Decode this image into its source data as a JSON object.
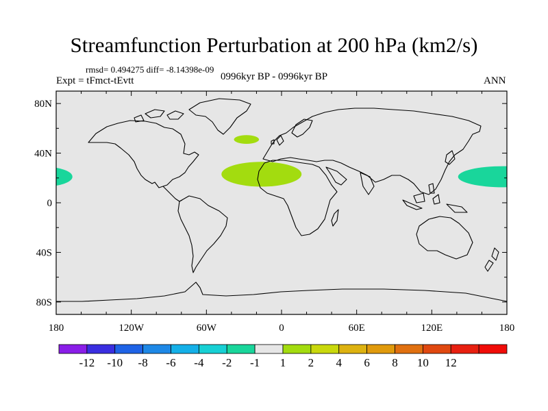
{
  "chart_data": {
    "type": "map",
    "title": "Streamfunction Perturbation at 200 hPa (km2/s)",
    "stats": "rmsd= 0.494275 diff= -8.14398e-09",
    "experiment": "Expt = tFmct-tEvtt",
    "period": "0996kyr BP - 0996kyr BP",
    "season": "ANN",
    "lon_range": [
      -180,
      180
    ],
    "lat_range": [
      -90,
      90
    ],
    "lon_ticks": [
      {
        "value": -180,
        "label": "180"
      },
      {
        "value": -120,
        "label": "120W"
      },
      {
        "value": -60,
        "label": "60W"
      },
      {
        "value": 0,
        "label": "0"
      },
      {
        "value": 60,
        "label": "60E"
      },
      {
        "value": 120,
        "label": "120E"
      },
      {
        "value": 180,
        "label": "180"
      }
    ],
    "lat_ticks": [
      {
        "value": 80,
        "label": "80N"
      },
      {
        "value": 40,
        "label": "40N"
      },
      {
        "value": 0,
        "label": "0"
      },
      {
        "value": -40,
        "label": "40S"
      },
      {
        "value": -80,
        "label": "80S"
      }
    ],
    "background_color": "#e6e6e6",
    "anomalies": [
      {
        "name": "north-atlantic",
        "lon": -28,
        "lat": 51,
        "lon_halfwidth": 10,
        "lat_halfwidth": 3.5,
        "color": "#a3dc0f",
        "level": "1 to 2"
      },
      {
        "name": "north-africa",
        "lon": -16,
        "lat": 23,
        "lon_halfwidth": 32,
        "lat_halfwidth": 10,
        "color": "#a3dc0f",
        "level": "1 to 2"
      },
      {
        "name": "west-pacific",
        "lon": 177,
        "lat": 21,
        "lon_halfwidth": 36,
        "lat_halfwidth": 8.5,
        "color": "#19d69b",
        "level": "-2 to -1"
      },
      {
        "name": "central-pacific",
        "lon": -190,
        "lat": 21,
        "lon_halfwidth": 23,
        "lat_halfwidth": 8,
        "color": "#19d69b",
        "level": "-2 to -1"
      }
    ],
    "colorbar": {
      "colors": [
        "#8a1ee8",
        "#3a2ee0",
        "#1f63e6",
        "#1e88e6",
        "#14b0e8",
        "#17d0d4",
        "#19d69b",
        "#e6e6e6",
        "#a3dc0f",
        "#c9d80c",
        "#ddb210",
        "#e09a0c",
        "#e07010",
        "#e04810",
        "#e82010",
        "#f00c08"
      ],
      "labels": [
        "-12",
        "-10",
        "-8",
        "-6",
        "-4",
        "-2",
        "-1",
        "1",
        "2",
        "4",
        "6",
        "8",
        "10",
        "12"
      ]
    }
  }
}
